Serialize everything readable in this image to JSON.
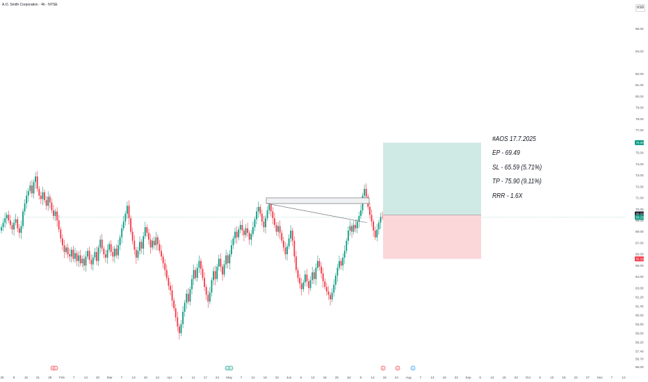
{
  "header": {
    "symbol_title": "A.O. Smith Corporation · 4h · NYSE",
    "currency": "USD"
  },
  "colors": {
    "up": "#089981",
    "down": "#f23645",
    "target_zone": "#cfeae4",
    "stop_zone": "#fbd7da",
    "current_line": "#9bd4cd",
    "axis_text": "#4a4f5c"
  },
  "annotations": {
    "line1": "#AOS 17.7.2025",
    "line2": "EP - 69.49",
    "line3": "SL - 65.59 (5.71%)",
    "line4": "TP - 75.90 (9.11%)",
    "line5": "RRR - 1.6X"
  },
  "chart_data": {
    "type": "candlestick",
    "title": "A.O. Smith Corporation · 4h · NYSE",
    "ylim": [
      55.9,
      87.2
    ],
    "y_ticks": [
      "56.00",
      "56.70",
      "57.40",
      "58.20",
      "59.00",
      "59.80",
      "60.60",
      "61.40",
      "62.20",
      "63.00",
      "64.00",
      "65.00",
      "66.00",
      "67.00",
      "68.00",
      "69.00",
      "70.00",
      "71.00",
      "72.00",
      "73.00",
      "74.00",
      "75.00",
      "76.00",
      "77.00",
      "78.00",
      "79.00",
      "80.00",
      "81.00",
      "82.00",
      "84.00",
      "86.00"
    ],
    "x_ticks": [
      "25",
      "8",
      "15",
      "21",
      "28",
      "Feb",
      "7",
      "13",
      "20",
      "Mar",
      "7",
      "13",
      "19",
      "24",
      "Apr",
      "9",
      "11",
      "17",
      "24",
      "May",
      "7",
      "12",
      "16",
      "22",
      "Jun",
      "6",
      "12",
      "18",
      "25",
      "Jul",
      "8",
      "12",
      "18",
      "24",
      "Aug",
      "7",
      "13",
      "18",
      "22",
      "Sep",
      "6",
      "12",
      "18",
      "22",
      "Oct",
      "6",
      "10",
      "16",
      "22",
      "27",
      "Nov",
      "7",
      "12"
    ],
    "price_tags": [
      {
        "label": "75.90",
        "value": 75.9,
        "color": "#089981"
      },
      {
        "label": "69.58",
        "value": 69.58,
        "color": "#131722"
      },
      {
        "label": "69.28",
        "value": 69.28,
        "color": "#089981"
      },
      {
        "label": "65.59",
        "value": 65.59,
        "color": "#f23645"
      }
    ],
    "current_price": 69.28,
    "position": {
      "entry": 69.49,
      "stop": 65.59,
      "target": 75.9
    },
    "zone_label": "",
    "event_markers": [
      {
        "label": "D",
        "color": "#f23645"
      },
      {
        "label": "D",
        "color": "#f23645"
      },
      {
        "label": "D",
        "color": "#089981"
      },
      {
        "label": "D",
        "color": "#089981"
      },
      {
        "label": "E",
        "color": "#f23645"
      },
      {
        "label": "D",
        "color": "#f23645"
      },
      {
        "label": "D",
        "color": "#2196f3"
      }
    ],
    "closes": [
      68.4,
      68.8,
      69.2,
      69.5,
      69.0,
      68.6,
      68.2,
      68.8,
      69.1,
      68.3,
      67.9,
      68.5,
      69.8,
      70.5,
      71.2,
      71.6,
      72.1,
      71.4,
      72.4,
      72.9,
      71.8,
      71.2,
      70.9,
      71.5,
      70.8,
      70.3,
      71.1,
      70.6,
      69.9,
      69.4,
      69.8,
      69.0,
      68.2,
      67.4,
      66.8,
      66.2,
      66.6,
      66.0,
      65.8,
      66.4,
      65.6,
      66.1,
      65.4,
      65.9,
      65.2,
      65.6,
      65.0,
      65.8,
      66.3,
      65.5,
      65.1,
      65.7,
      66.2,
      65.4,
      66.6,
      67.3,
      66.5,
      66.0,
      65.7,
      66.4,
      66.9,
      66.2,
      65.8,
      66.5,
      65.9,
      66.8,
      67.5,
      68.3,
      68.9,
      69.6,
      70.3,
      69.2,
      68.0,
      67.2,
      66.4,
      65.7,
      66.3,
      67.1,
      66.5,
      67.6,
      68.4,
      67.9,
      67.3,
      66.6,
      67.2,
      66.8,
      67.5,
      66.9,
      66.3,
      65.8,
      65.2,
      64.6,
      63.9,
      63.2,
      62.8,
      61.9,
      61.2,
      60.4,
      59.6,
      59.0,
      59.8,
      60.9,
      61.7,
      62.5,
      61.8,
      62.9,
      63.8,
      64.6,
      63.9,
      64.8,
      65.4,
      64.7,
      63.9,
      63.1,
      62.4,
      61.8,
      62.6,
      63.7,
      64.5,
      63.8,
      64.9,
      65.6,
      64.9,
      64.2,
      65.1,
      65.9,
      65.2,
      66.0,
      66.8,
      67.4,
      68.0,
      67.5,
      68.2,
      68.6,
      68.1,
      67.7,
      68.3,
      67.9,
      67.3,
      67.8,
      68.4,
      69.1,
      69.8,
      70.2,
      69.6,
      68.9,
      68.4,
      69.2,
      69.9,
      70.4,
      69.8,
      69.2,
      68.6,
      68.0,
      68.5,
      67.9,
      67.2,
      66.6,
      66.0,
      66.7,
      67.4,
      68.1,
      67.2,
      65.8,
      64.6,
      63.9,
      63.4,
      62.9,
      63.5,
      64.2,
      63.6,
      63.0,
      63.7,
      64.4,
      63.8,
      64.8,
      65.4,
      64.9,
      64.3,
      63.6,
      63.1,
      62.7,
      62.4,
      62.0,
      62.6,
      63.3,
      64.1,
      64.8,
      65.4,
      65.0,
      65.7,
      66.3,
      67.2,
      68.1,
      68.5,
      68.0,
      68.6,
      68.3,
      68.9,
      69.4,
      69.9,
      71.2,
      71.8,
      71.1,
      70.2,
      69.5,
      68.9,
      68.1,
      67.5,
      68.2,
      68.8,
      69.3,
      69.28
    ]
  }
}
